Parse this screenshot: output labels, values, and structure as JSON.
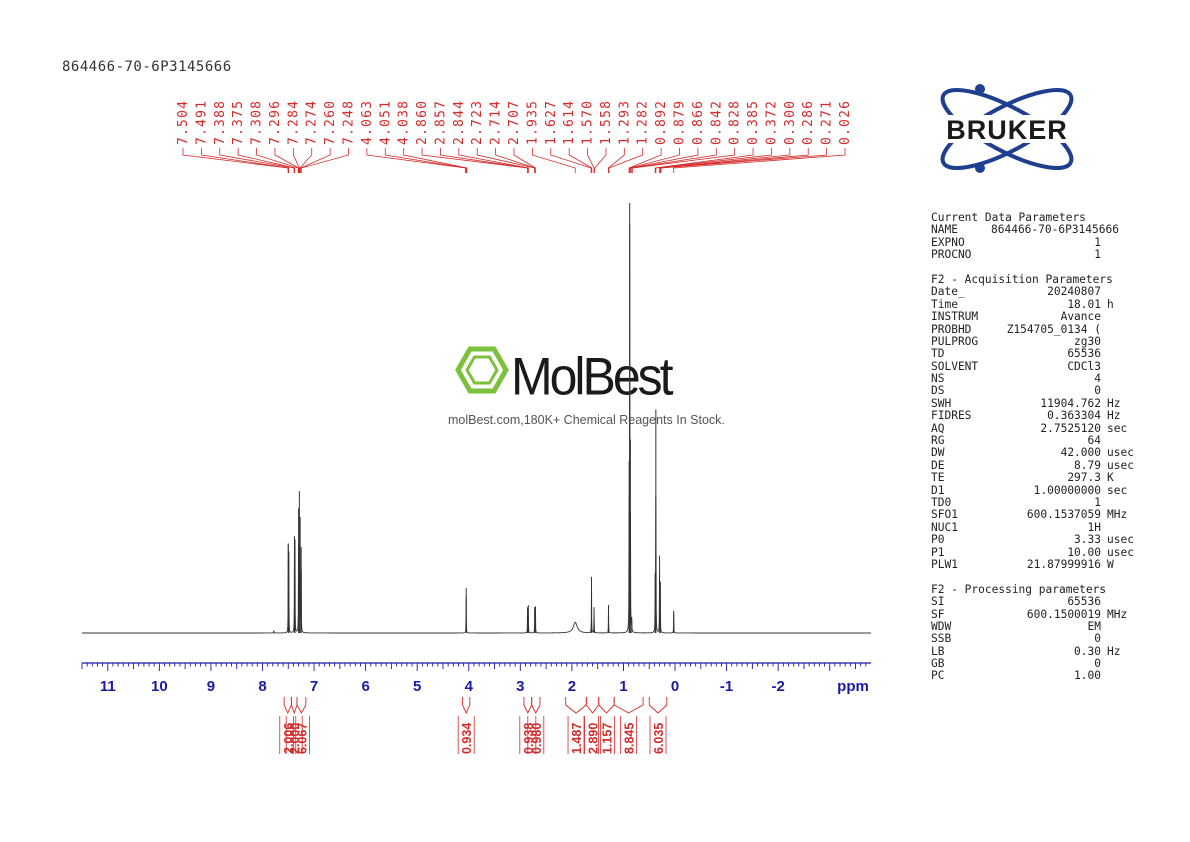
{
  "sample_id": "864466-70-6P3145666",
  "logo_text": "BRUKER",
  "watermark": {
    "brand": "MolBest",
    "tagline": "molBest.com,180K+ Chemical Reagents In Stock."
  },
  "colors": {
    "axis": "#1a1aa6",
    "annotation": "#d42a2a",
    "spectrum": "#333333",
    "logo": "#1e3f8f",
    "molbest_green": "#7bc13b"
  },
  "parameters": [
    {
      "heading": "Current Data Parameters",
      "rows": [
        {
          "k": "NAME",
          "v": "864466-70-6P3145666",
          "u": ""
        },
        {
          "k": "EXPNO",
          "v": "1",
          "u": ""
        },
        {
          "k": "PROCNO",
          "v": "1",
          "u": ""
        }
      ]
    },
    {
      "heading": "F2 - Acquisition Parameters",
      "rows": [
        {
          "k": "Date_",
          "v": "20240807",
          "u": ""
        },
        {
          "k": "Time",
          "v": "18.01",
          "u": "h"
        },
        {
          "k": "INSTRUM",
          "v": "Avance",
          "u": ""
        },
        {
          "k": "PROBHD",
          "v": "Z154705_0134 (",
          "u": ""
        },
        {
          "k": "PULPROG",
          "v": "zg30",
          "u": ""
        },
        {
          "k": "TD",
          "v": "65536",
          "u": ""
        },
        {
          "k": "SOLVENT",
          "v": "CDCl3",
          "u": ""
        },
        {
          "k": "NS",
          "v": "4",
          "u": ""
        },
        {
          "k": "DS",
          "v": "0",
          "u": ""
        },
        {
          "k": "SWH",
          "v": "11904.762",
          "u": "Hz"
        },
        {
          "k": "FIDRES",
          "v": "0.363304",
          "u": "Hz"
        },
        {
          "k": "AQ",
          "v": "2.7525120",
          "u": "sec"
        },
        {
          "k": "RG",
          "v": "64",
          "u": ""
        },
        {
          "k": "DW",
          "v": "42.000",
          "u": "usec"
        },
        {
          "k": "DE",
          "v": "8.79",
          "u": "usec"
        },
        {
          "k": "TE",
          "v": "297.3",
          "u": "K"
        },
        {
          "k": "D1",
          "v": "1.00000000",
          "u": "sec"
        },
        {
          "k": "TD0",
          "v": "1",
          "u": ""
        },
        {
          "k": "SFO1",
          "v": "600.1537059",
          "u": "MHz"
        },
        {
          "k": "NUC1",
          "v": "1H",
          "u": ""
        },
        {
          "k": "P0",
          "v": "3.33",
          "u": "usec"
        },
        {
          "k": "P1",
          "v": "10.00",
          "u": "usec"
        },
        {
          "k": "PLW1",
          "v": "21.87999916",
          "u": "W"
        }
      ]
    },
    {
      "heading": "F2 - Processing parameters",
      "rows": [
        {
          "k": "SI",
          "v": "65536",
          "u": ""
        },
        {
          "k": "SF",
          "v": "600.1500019",
          "u": "MHz"
        },
        {
          "k": "WDW",
          "v": "EM",
          "u": ""
        },
        {
          "k": "SSB",
          "v": "0",
          "u": ""
        },
        {
          "k": "LB",
          "v": "0.30",
          "u": "Hz"
        },
        {
          "k": "GB",
          "v": "0",
          "u": ""
        },
        {
          "k": "PC",
          "v": "1.00",
          "u": ""
        }
      ]
    }
  ],
  "chart_data": {
    "type": "line",
    "title": "",
    "xlabel": "ppm",
    "x_reversed": true,
    "xlim": [
      11.5,
      -3.8
    ],
    "x_ticks": [
      "11",
      "10",
      "9",
      "8",
      "7",
      "6",
      "5",
      "4",
      "3",
      "2",
      "1",
      "0",
      "-1",
      "-2"
    ],
    "peak_labels": [
      "7.504",
      "7.491",
      "7.388",
      "7.375",
      "7.308",
      "7.296",
      "7.284",
      "7.274",
      "7.260",
      "7.248",
      "4.063",
      "4.051",
      "4.038",
      "2.860",
      "2.857",
      "2.844",
      "2.723",
      "2.714",
      "2.707",
      "1.935",
      "1.627",
      "1.614",
      "1.570",
      "1.558",
      "1.293",
      "1.282",
      "0.892",
      "0.879",
      "0.866",
      "0.842",
      "0.828",
      "0.385",
      "0.372",
      "0.300",
      "0.286",
      "0.271",
      "0.026"
    ],
    "peaks": [
      {
        "ppm": 7.78,
        "height": 0.006
      },
      {
        "ppm": 7.5,
        "height": 0.205
      },
      {
        "ppm": 7.49,
        "height": 0.19
      },
      {
        "ppm": 7.38,
        "height": 0.225
      },
      {
        "ppm": 7.37,
        "height": 0.21
      },
      {
        "ppm": 7.3,
        "height": 0.29
      },
      {
        "ppm": 7.285,
        "height": 0.33
      },
      {
        "ppm": 7.27,
        "height": 0.27
      },
      {
        "ppm": 7.25,
        "height": 0.2
      },
      {
        "ppm": 4.05,
        "height": 0.105
      },
      {
        "ppm": 2.86,
        "height": 0.06
      },
      {
        "ppm": 2.845,
        "height": 0.065
      },
      {
        "ppm": 2.72,
        "height": 0.06
      },
      {
        "ppm": 2.707,
        "height": 0.062
      },
      {
        "ppm": 1.935,
        "height": 0.025,
        "broad": true
      },
      {
        "ppm": 1.62,
        "height": 0.13
      },
      {
        "ppm": 1.57,
        "height": 0.06
      },
      {
        "ppm": 1.29,
        "height": 0.065
      },
      {
        "ppm": 0.89,
        "height": 0.4
      },
      {
        "ppm": 0.879,
        "height": 1.0
      },
      {
        "ppm": 0.866,
        "height": 0.45
      },
      {
        "ppm": 0.84,
        "height": 0.03
      },
      {
        "ppm": 0.385,
        "height": 0.14
      },
      {
        "ppm": 0.372,
        "height": 0.52
      },
      {
        "ppm": 0.3,
        "height": 0.18
      },
      {
        "ppm": 0.286,
        "height": 0.12
      },
      {
        "ppm": 0.026,
        "height": 0.052
      }
    ],
    "integrals": [
      {
        "value": "2.006",
        "from": 7.58,
        "to": 7.44
      },
      {
        "value": "2.000",
        "from": 7.44,
        "to": 7.33
      },
      {
        "value": "6.067",
        "from": 7.33,
        "to": 7.16
      },
      {
        "value": "0.934",
        "from": 4.12,
        "to": 3.98
      },
      {
        "value": "0.938",
        "from": 2.93,
        "to": 2.78
      },
      {
        "value": "0.980",
        "from": 2.78,
        "to": 2.62
      },
      {
        "value": "1.487",
        "from": 2.12,
        "to": 1.72
      },
      {
        "value": "2.890",
        "from": 1.72,
        "to": 1.48
      },
      {
        "value": "1.157",
        "from": 1.48,
        "to": 1.18
      },
      {
        "value": "8.845",
        "from": 1.18,
        "to": 0.62
      },
      {
        "value": "6.035",
        "from": 0.5,
        "to": 0.16
      }
    ],
    "grid": false
  }
}
